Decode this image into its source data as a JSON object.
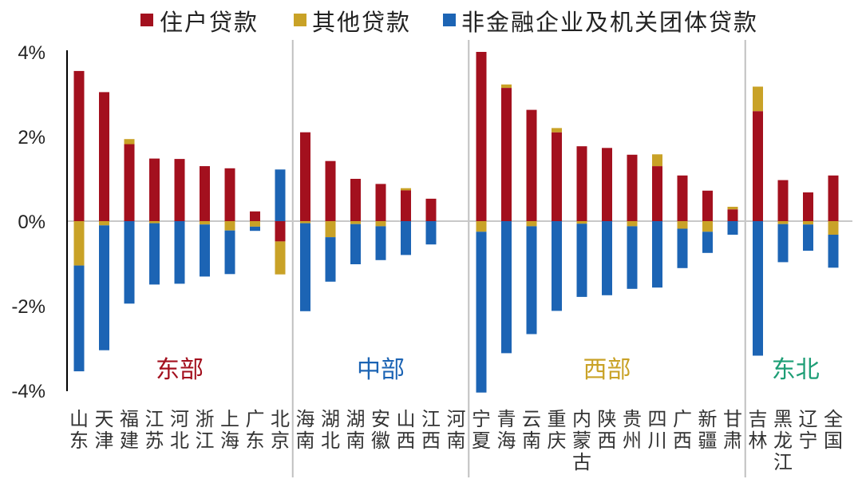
{
  "chart_data": {
    "type": "bar",
    "stacked": true,
    "legend_position": "top",
    "grid": false,
    "ylim": [
      -4,
      4
    ],
    "y_ticks": [
      "-4%",
      "-2%",
      "0%",
      "2%",
      "4%"
    ],
    "y_tick_values": [
      -4,
      -2,
      0,
      2,
      4
    ],
    "colors": {
      "household": "#A3101E",
      "other": "#C9A227",
      "nonfinancial": "#1C64B4",
      "zero_line": "#c8c8c8",
      "divider": "#c0c0c0",
      "axis": "#000000"
    },
    "categories": [
      "山东",
      "天津",
      "福建",
      "江苏",
      "河北",
      "浙江",
      "上海",
      "广东",
      "北京",
      "海南",
      "湖北",
      "湖南",
      "安徽",
      "山西",
      "江西",
      "河南",
      "宁夏",
      "青海",
      "云南",
      "重庆",
      "内蒙古",
      "陕西",
      "贵州",
      "四川",
      "广西",
      "新疆",
      "甘肃",
      "吉林",
      "黑龙江",
      "辽宁",
      "全国"
    ],
    "series": [
      {
        "name": "住户贷款",
        "color": "#A3101E",
        "values": [
          3.55,
          3.05,
          1.82,
          1.48,
          1.47,
          1.3,
          1.25,
          0.23,
          -0.48,
          2.1,
          1.42,
          1.0,
          0.88,
          0.73,
          0.53,
          0.0,
          4.0,
          3.15,
          2.63,
          2.1,
          1.77,
          1.73,
          1.57,
          1.3,
          1.08,
          0.72,
          0.28,
          2.6,
          0.97,
          0.68,
          1.08
        ]
      },
      {
        "name": "其他贷款",
        "color": "#C9A227",
        "values": [
          -1.05,
          -0.1,
          0.12,
          -0.05,
          0.0,
          -0.08,
          -0.22,
          -0.13,
          -0.78,
          -0.05,
          -0.38,
          -0.07,
          -0.12,
          0.05,
          0.0,
          0.0,
          -0.25,
          0.08,
          -0.12,
          0.1,
          -0.06,
          0.0,
          -0.12,
          0.28,
          -0.18,
          -0.25,
          0.06,
          0.58,
          -0.07,
          -0.08,
          -0.32
        ]
      },
      {
        "name": "非金融企业及机关团体贷款",
        "color": "#1C64B4",
        "values": [
          -2.5,
          -2.95,
          -1.95,
          -1.45,
          -1.48,
          -1.23,
          -1.03,
          -0.1,
          1.22,
          -2.08,
          -1.05,
          -0.95,
          -0.8,
          -0.8,
          -0.55,
          0.0,
          -3.8,
          -3.12,
          -2.55,
          -2.12,
          -1.73,
          -1.75,
          -1.48,
          -1.57,
          -0.93,
          -0.5,
          -0.32,
          -3.18,
          -0.9,
          -0.62,
          -0.78
        ]
      }
    ],
    "regions": [
      {
        "name": "东部",
        "color": "#A3101E",
        "start": 0,
        "end": 8
      },
      {
        "name": "中部",
        "color": "#1C64B4",
        "start": 9,
        "end": 15
      },
      {
        "name": "西部",
        "color": "#C9A227",
        "start": 16,
        "end": 26
      },
      {
        "name": "东北",
        "color": "#1E9E76",
        "start": 27,
        "end": 30
      }
    ]
  }
}
